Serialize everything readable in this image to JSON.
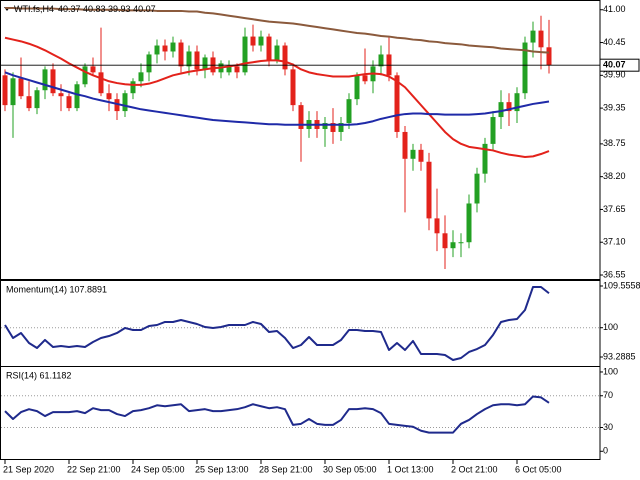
{
  "chart_data": [
    {
      "type": "candlestick",
      "title": "WTI.fs,H4",
      "info": "40.37 40.83 39.93 40.07",
      "categories": [
        "21 Sep 2020",
        null,
        null,
        null,
        null,
        null,
        null,
        null,
        "22 Sep 21:00",
        null,
        null,
        null,
        null,
        null,
        null,
        null,
        "24 Sep 05:00",
        null,
        null,
        null,
        null,
        null,
        null,
        null,
        "25 Sep 13:00",
        null,
        null,
        null,
        null,
        null,
        null,
        null,
        "28 Sep 21:00",
        null,
        null,
        null,
        null,
        null,
        null,
        null,
        "30 Sep 05:00",
        null,
        null,
        null,
        null,
        null,
        null,
        null,
        "1 Oct 13:00",
        null,
        null,
        null,
        null,
        null,
        null,
        null,
        "2 Oct 21:00",
        null,
        null,
        null,
        null,
        null,
        null,
        null,
        "6 Oct 05:00",
        null,
        null,
        null,
        null
      ],
      "open": [
        39.9,
        39.4,
        39.85,
        39.55,
        39.35,
        39.65,
        40.0,
        39.6,
        39.55,
        39.35,
        39.75,
        40.05,
        39.95,
        39.6,
        39.5,
        39.3,
        39.6,
        39.8,
        39.95,
        40.25,
        40.4,
        40.3,
        40.45,
        40.05,
        40.3,
        40.0,
        40.2,
        39.95,
        39.95,
        40.05,
        39.95,
        40.55,
        40.4,
        40.55,
        40.15,
        40.4,
        40.0,
        39.4,
        39.0,
        39.15,
        39.0,
        39.1,
        38.95,
        39.1,
        39.5,
        39.9,
        39.8,
        40.05,
        40.25,
        39.9,
        38.95,
        38.5,
        38.65,
        38.45,
        37.5,
        37.25,
        37.0,
        37.1,
        37.1,
        37.75,
        38.25,
        38.75,
        39.2,
        39.45,
        39.3,
        39.6,
        40.45,
        40.65,
        40.37
      ],
      "high": [
        40.0,
        39.95,
        40.2,
        39.8,
        39.7,
        40.05,
        40.1,
        39.75,
        39.6,
        39.8,
        40.1,
        40.2,
        40.7,
        39.75,
        39.6,
        39.65,
        39.85,
        40.1,
        40.3,
        40.5,
        40.5,
        40.55,
        40.5,
        40.4,
        40.4,
        40.25,
        40.3,
        40.15,
        40.15,
        40.1,
        40.7,
        40.75,
        40.65,
        40.6,
        40.5,
        40.45,
        40.1,
        39.45,
        39.3,
        39.3,
        39.2,
        39.35,
        39.2,
        39.6,
        39.95,
        40.35,
        40.15,
        40.4,
        40.55,
        39.95,
        39.05,
        38.75,
        38.75,
        38.6,
        38.0,
        37.55,
        37.3,
        37.25,
        37.9,
        38.35,
        38.85,
        39.3,
        39.65,
        39.6,
        39.7,
        40.55,
        40.8,
        40.9,
        40.83
      ],
      "low": [
        39.3,
        38.85,
        39.5,
        39.3,
        39.25,
        39.5,
        39.55,
        39.3,
        39.3,
        39.3,
        39.7,
        39.9,
        39.55,
        39.3,
        39.15,
        39.2,
        39.5,
        39.7,
        39.8,
        40.1,
        40.15,
        40.2,
        39.95,
        39.9,
        39.9,
        39.85,
        39.9,
        39.85,
        39.9,
        39.85,
        39.9,
        40.3,
        40.3,
        40.05,
        40.1,
        39.9,
        39.3,
        38.45,
        38.85,
        38.85,
        38.7,
        38.75,
        38.8,
        39.0,
        39.4,
        39.75,
        39.6,
        39.9,
        39.8,
        38.85,
        37.6,
        38.3,
        38.3,
        37.3,
        36.95,
        36.65,
        36.85,
        36.85,
        37.0,
        37.6,
        38.1,
        38.65,
        39.0,
        39.05,
        39.1,
        39.5,
        40.2,
        40.0,
        39.93
      ],
      "close": [
        39.4,
        39.85,
        39.55,
        39.35,
        39.65,
        40.0,
        39.6,
        39.55,
        39.35,
        39.75,
        40.05,
        39.95,
        39.6,
        39.5,
        39.3,
        39.6,
        39.8,
        39.95,
        40.25,
        40.4,
        40.3,
        40.45,
        40.05,
        40.3,
        40.0,
        40.2,
        39.95,
        40.1,
        40.05,
        39.95,
        40.55,
        40.4,
        40.55,
        40.15,
        40.4,
        40.0,
        39.4,
        39.0,
        39.15,
        39.0,
        39.1,
        38.95,
        39.1,
        39.5,
        39.9,
        39.8,
        40.05,
        40.25,
        39.9,
        38.95,
        38.5,
        38.65,
        38.45,
        37.5,
        37.25,
        37.0,
        37.1,
        37.1,
        37.75,
        38.25,
        38.75,
        39.2,
        39.45,
        39.3,
        39.6,
        40.45,
        40.65,
        40.37,
        40.07
      ],
      "up_color": "#23a023",
      "down_color": "#e3221b",
      "series": [
        {
          "color": "#8b5a3c",
          "values": [
            41.03,
            41.03,
            41.02,
            41.02,
            41.02,
            41.02,
            41.02,
            41.01,
            41.01,
            41.01,
            41.0,
            41.0,
            41.0,
            41.0,
            41.0,
            40.99,
            40.99,
            40.99,
            40.99,
            40.98,
            40.98,
            40.98,
            40.98,
            40.97,
            40.97,
            40.95,
            40.94,
            40.92,
            40.9,
            40.88,
            40.86,
            40.84,
            40.82,
            40.8,
            40.79,
            40.78,
            40.77,
            40.75,
            40.73,
            40.71,
            40.69,
            40.67,
            40.65,
            40.63,
            40.61,
            40.6,
            40.58,
            40.56,
            40.55,
            40.53,
            40.52,
            40.5,
            40.49,
            40.47,
            40.46,
            40.44,
            40.43,
            40.42,
            40.4,
            40.39,
            40.38,
            40.37,
            40.35,
            40.34,
            40.33,
            40.32,
            40.3,
            40.29,
            40.28
          ]
        },
        {
          "color": "#e3221b",
          "values": [
            40.53,
            40.5,
            40.47,
            40.43,
            40.38,
            40.32,
            40.25,
            40.18,
            40.1,
            40.03,
            39.96,
            39.9,
            39.85,
            39.8,
            39.77,
            39.75,
            39.74,
            39.74,
            39.76,
            39.8,
            39.85,
            39.9,
            39.93,
            39.96,
            39.98,
            40.0,
            40.02,
            40.03,
            40.05,
            40.07,
            40.1,
            40.12,
            40.14,
            40.15,
            40.15,
            40.13,
            40.08,
            40.0,
            39.95,
            39.92,
            39.9,
            39.88,
            39.88,
            39.88,
            39.9,
            39.92,
            39.93,
            39.92,
            39.88,
            39.8,
            39.7,
            39.55,
            39.4,
            39.25,
            39.1,
            38.95,
            38.83,
            38.75,
            38.7,
            38.68,
            38.66,
            38.64,
            38.6,
            38.57,
            38.55,
            38.53,
            38.54,
            38.58,
            38.63
          ]
        },
        {
          "color": "#1f2aa8",
          "values": [
            39.95,
            39.9,
            39.86,
            39.82,
            39.78,
            39.74,
            39.7,
            39.66,
            39.62,
            39.58,
            39.55,
            39.51,
            39.48,
            39.45,
            39.42,
            39.39,
            39.36,
            39.33,
            39.31,
            39.29,
            39.27,
            39.25,
            39.23,
            39.21,
            39.19,
            39.17,
            39.15,
            39.14,
            39.13,
            39.12,
            39.11,
            39.1,
            39.09,
            39.08,
            39.08,
            39.07,
            39.07,
            39.07,
            39.07,
            39.07,
            39.07,
            39.07,
            39.07,
            39.07,
            39.08,
            39.1,
            39.13,
            39.17,
            39.2,
            39.23,
            39.25,
            39.26,
            39.26,
            39.25,
            39.25,
            39.24,
            39.24,
            39.24,
            39.24,
            39.25,
            39.26,
            39.28,
            39.3,
            39.33,
            39.36,
            39.39,
            39.42,
            39.44,
            39.46
          ]
        }
      ],
      "last_price": 40.07,
      "ylim": [
        36.5,
        41.13
      ],
      "yticks": [
        {
          "value": 41,
          "label": "41.00"
        },
        40.45,
        {
          "value": 39.9,
          "label": "39.90"
        },
        39.35,
        38.75,
        {
          "value": 38.2,
          "label": "38.20"
        },
        37.65,
        {
          "value": 37.1,
          "label": "37.10"
        },
        36.55
      ]
    },
    {
      "type": "line",
      "title": "Momentum(14) 107.8891",
      "color": "#1f2a8c",
      "values": [
        100.62,
        97.64,
        98.79,
        96.5,
        95.35,
        97.19,
        95.58,
        95.81,
        95.58,
        95.81,
        95.58,
        96.73,
        97.64,
        98.1,
        98.79,
        99.93,
        99.48,
        99.48,
        100.39,
        100.62,
        101.31,
        101.31,
        101.77,
        101.31,
        100.85,
        100.16,
        99.93,
        100.16,
        100.62,
        100.62,
        100.62,
        101.31,
        100.85,
        99.02,
        99.25,
        97.64,
        95.35,
        96.04,
        97.87,
        96.04,
        96.04,
        96.04,
        97.19,
        99.48,
        99.48,
        99.25,
        99.25,
        99.02,
        94.89,
        96.5,
        94.89,
        96.96,
        93.98,
        93.98,
        93.98,
        93.75,
        92.6,
        93.06,
        94.44,
        95.12,
        96.04,
        98.33,
        101.31,
        101.77,
        101.99,
        104.06,
        109.33,
        109.33,
        107.89
      ],
      "levels": [
        100
      ],
      "ylim": [
        91.23,
        110.47
      ],
      "yticks": [
        109.5558,
        100,
        93.2885
      ]
    },
    {
      "type": "line",
      "title": "RSI(14) 61.1182",
      "color": "#1f2a8c",
      "values": [
        50.6,
        40.7,
        49.4,
        53.1,
        50.6,
        44.4,
        49.4,
        49.4,
        49.4,
        50.6,
        48.1,
        54.3,
        51.9,
        51.9,
        46.9,
        44.4,
        50.6,
        51.9,
        54.3,
        58.0,
        56.8,
        58.0,
        59.3,
        50.6,
        51.9,
        53.1,
        50.6,
        50.6,
        51.9,
        53.1,
        55.6,
        59.3,
        56.8,
        54.3,
        55.6,
        53.1,
        33.3,
        34.6,
        40.7,
        34.6,
        33.3,
        33.3,
        39.5,
        53.1,
        53.1,
        54.3,
        53.1,
        48.1,
        34.6,
        33.3,
        32.1,
        30.9,
        25.9,
        23.5,
        23.5,
        23.5,
        23.5,
        34.6,
        39.5,
        46.9,
        53.1,
        58.0,
        59.3,
        59.3,
        58.0,
        59.3,
        69.1,
        67.9,
        61.12
      ],
      "levels": [
        70,
        30
      ],
      "ylim": [
        -11,
        105
      ],
      "yticks": [
        100,
        70,
        30,
        0
      ]
    }
  ]
}
